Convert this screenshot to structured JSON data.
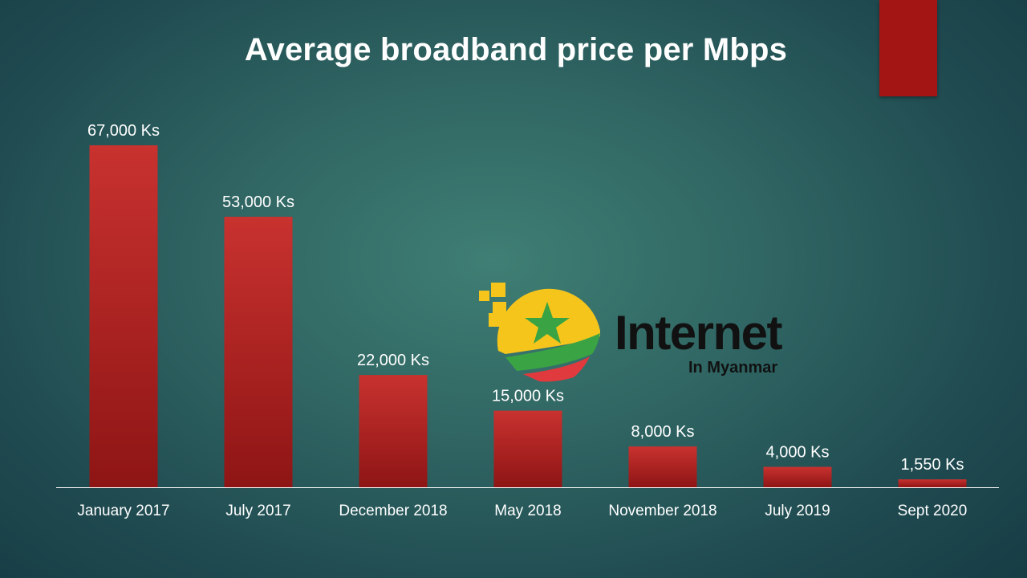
{
  "title": "Average broadband price per Mbps",
  "logo": {
    "word": "Internet",
    "sub": "In Myanmar"
  },
  "colors": {
    "bar": "#c8322f",
    "bar_dark": "#8e1515",
    "text": "#ffffff",
    "axis": "#ffffff",
    "accent_bar": "#a31414"
  },
  "chart_data": {
    "type": "bar",
    "title": "Average broadband price per Mbps",
    "categories": [
      "January 2017",
      "July 2017",
      "December 2018",
      "May 2018",
      "November 2018",
      "July 2019",
      "Sept 2020"
    ],
    "values": [
      67000,
      53000,
      22000,
      15000,
      8000,
      4000,
      1550
    ],
    "data_labels": [
      "67,000 Ks",
      "53,000 Ks",
      "22,000 Ks",
      "15,000 Ks",
      "8,000 Ks",
      "4,000 Ks",
      "1,550 Ks"
    ],
    "ylim": [
      0,
      67000
    ],
    "xlabel": "",
    "ylabel": "",
    "grid": false,
    "legend": "none"
  }
}
